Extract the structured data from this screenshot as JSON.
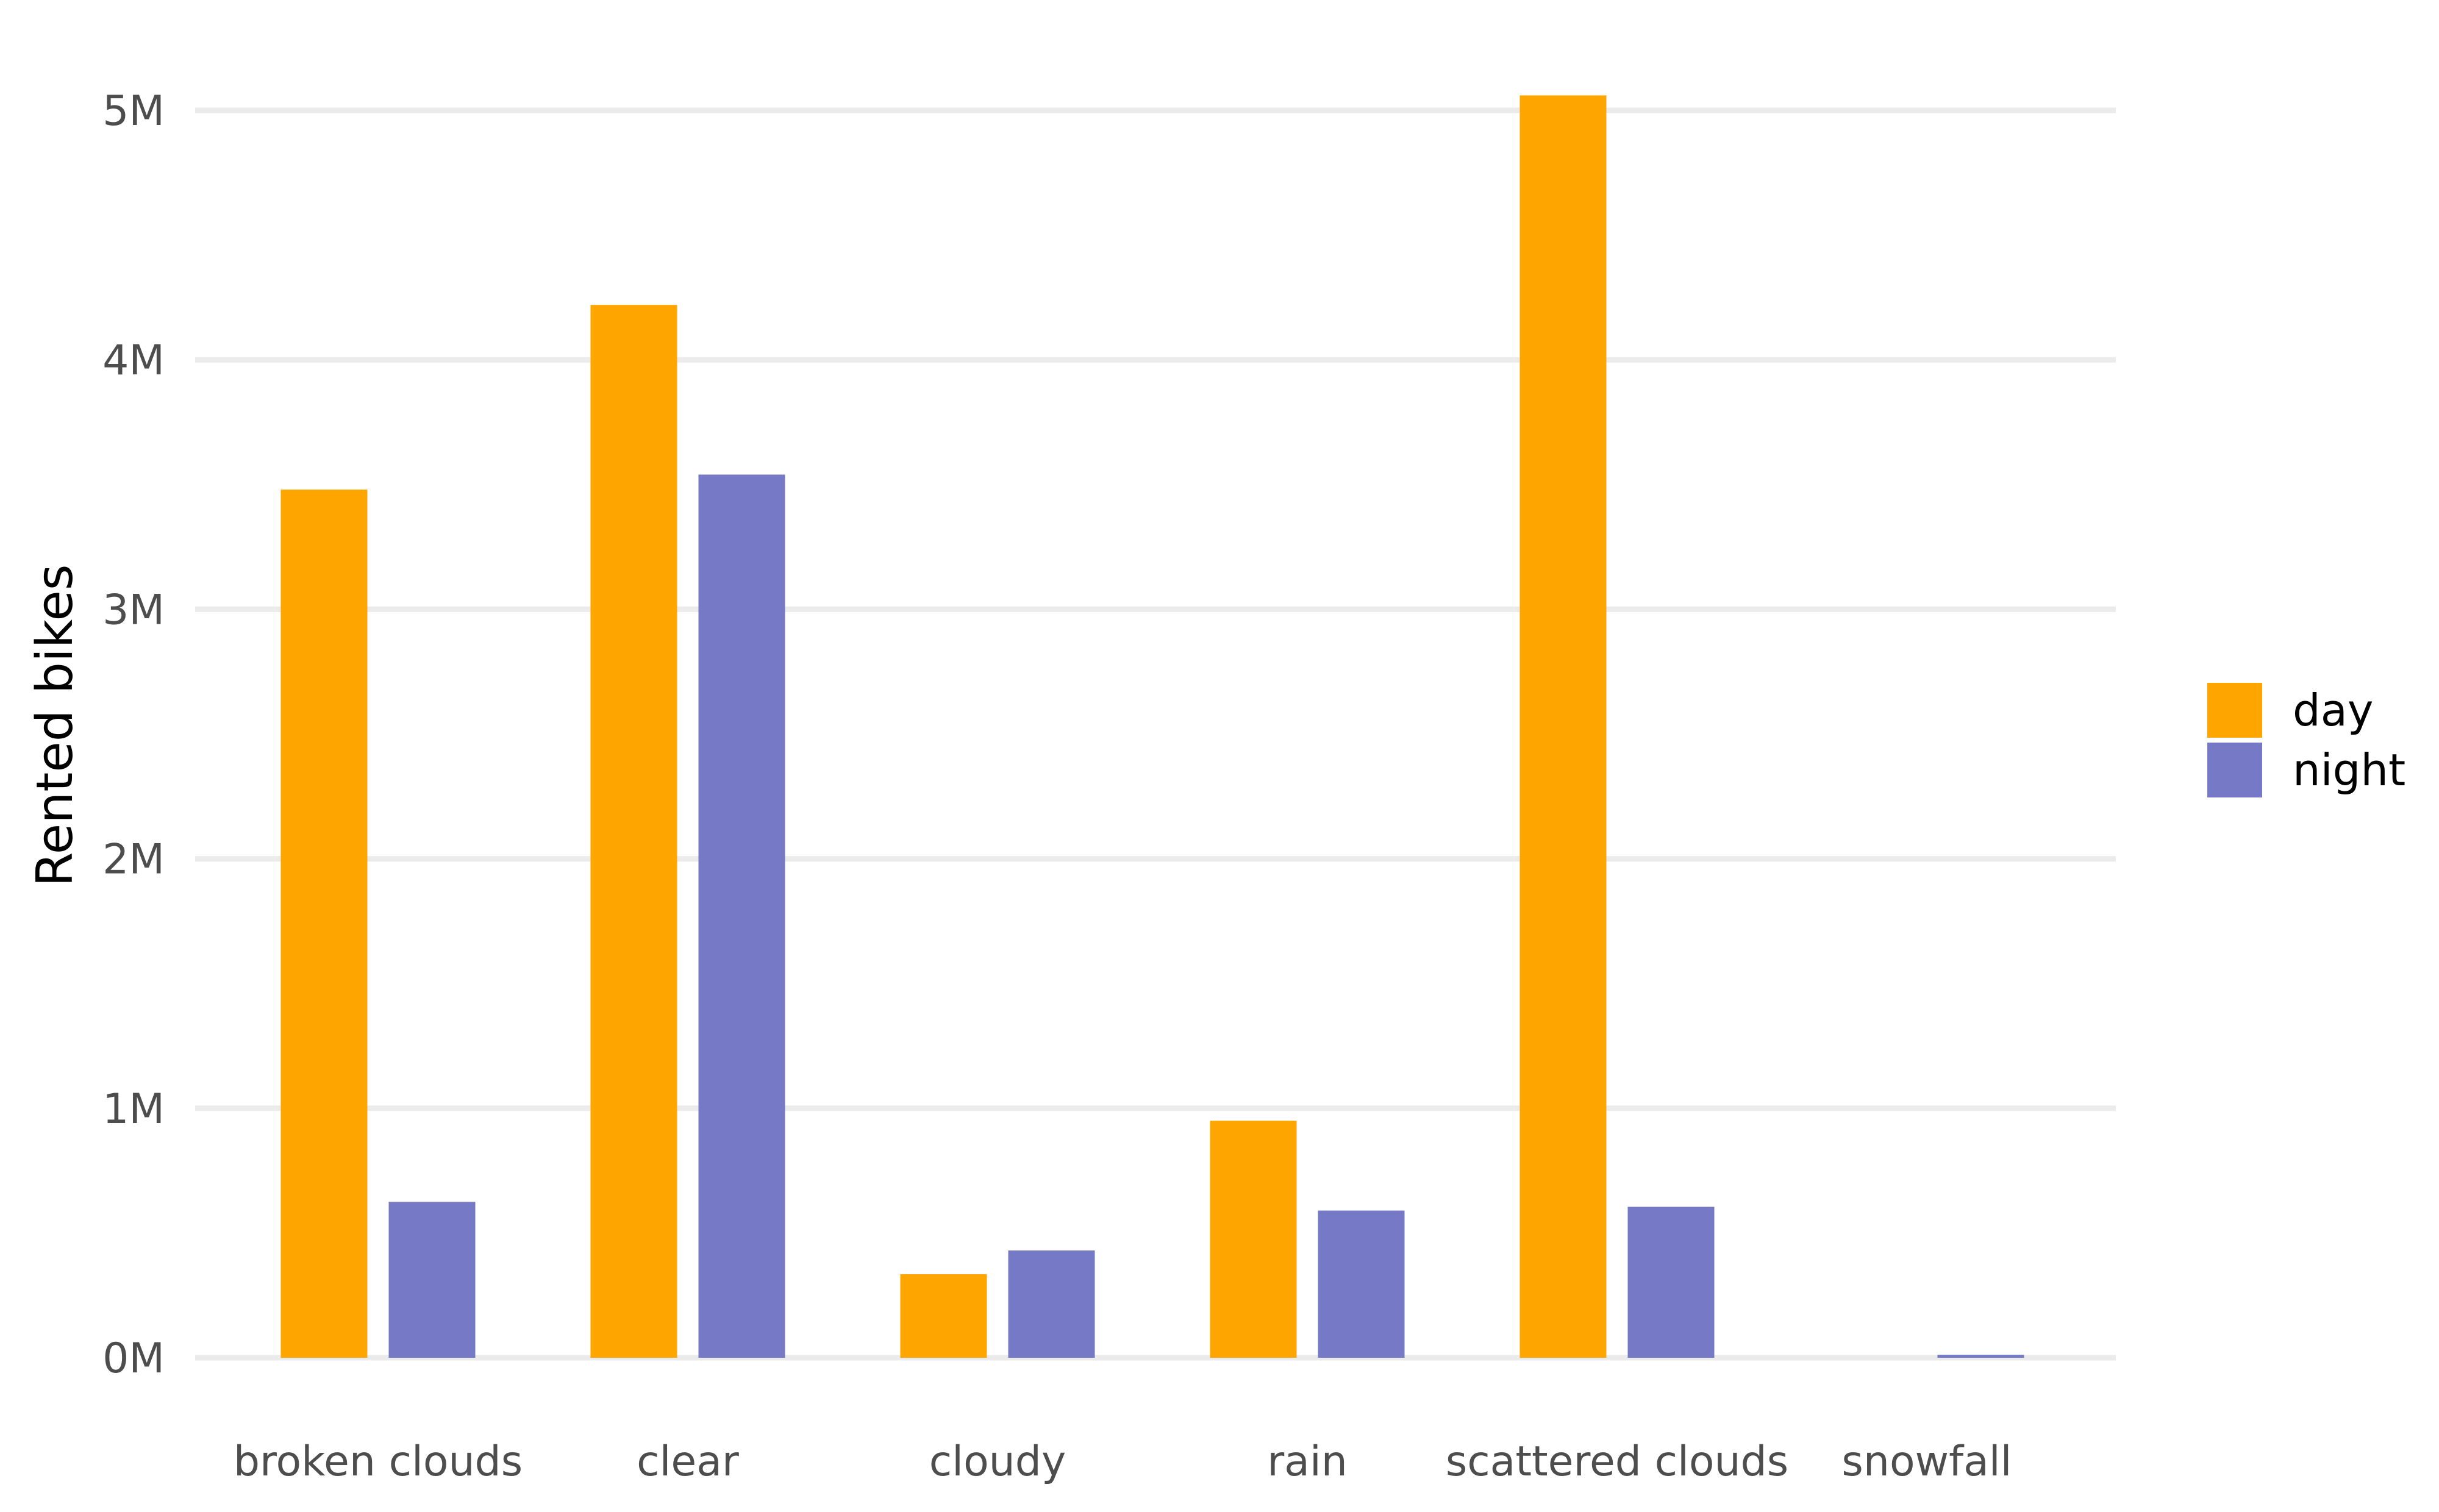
{
  "chart_data": {
    "type": "bar",
    "title": "",
    "xlabel": "",
    "ylabel": "Rented bikes",
    "categories": [
      "broken clouds",
      "clear",
      "cloudy",
      "rain",
      "scattered clouds",
      "snowfall"
    ],
    "series": [
      {
        "name": "day",
        "color": "#FFA500",
        "values": [
          3480000,
          4220000,
          335000,
          950000,
          5060000,
          0
        ]
      },
      {
        "name": "night",
        "color": "#7679C6",
        "values": [
          625000,
          3540000,
          430000,
          590000,
          605000,
          12000
        ]
      }
    ],
    "ylim": [
      0,
      5200000
    ],
    "yticks": [
      {
        "value": 0,
        "label": "0M"
      },
      {
        "value": 1000000,
        "label": "1M"
      },
      {
        "value": 2000000,
        "label": "2M"
      },
      {
        "value": 3000000,
        "label": "3M"
      },
      {
        "value": 4000000,
        "label": "4M"
      },
      {
        "value": 5000000,
        "label": "5M"
      }
    ],
    "grid": true,
    "legend_position": "right"
  }
}
